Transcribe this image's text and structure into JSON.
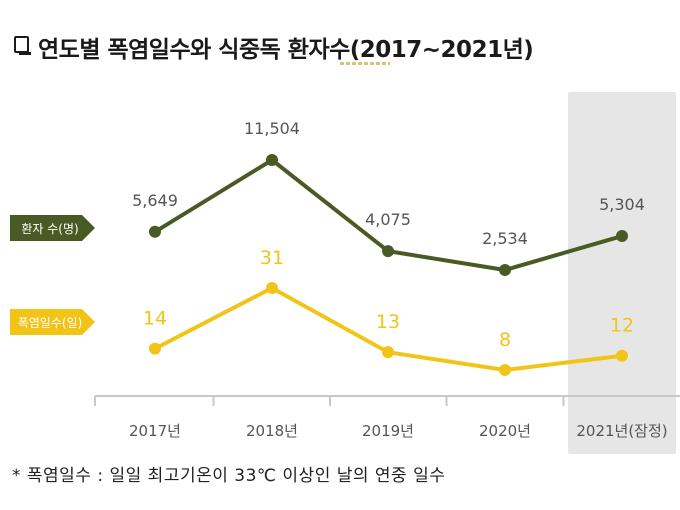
{
  "title": "연도별 폭염일수와 식중독 환자수(2017~2021년)",
  "footnote": "* 폭염일수 : 일일 최고기온이 33℃ 이상인 날의 연중 일수",
  "colors": {
    "patients": "#4a5a24",
    "heatwave": "#f2c418",
    "highlight_bg": "#e6e6e6",
    "axis": "#c8c8c8",
    "text": "#555555"
  },
  "chart_data": {
    "type": "line",
    "title": "연도별 폭염일수와 식중독 환자수(2017~2021년)",
    "categories": [
      "2017년",
      "2018년",
      "2019년",
      "2020년",
      "2021년(잠정)"
    ],
    "highlighted_category": "2021년(잠정)",
    "grid": false,
    "legend_placement": "left",
    "series": [
      {
        "name": "환자 수(명)",
        "values": [
          5649,
          11504,
          4075,
          2534,
          5304
        ],
        "labels": [
          "5,649",
          "11,504",
          "4,075",
          "2,534",
          "5,304"
        ]
      },
      {
        "name": "폭염일수(일)",
        "values": [
          14,
          31,
          13,
          8,
          12
        ],
        "labels": [
          "14",
          "31",
          "13",
          "8",
          "12"
        ]
      }
    ]
  }
}
